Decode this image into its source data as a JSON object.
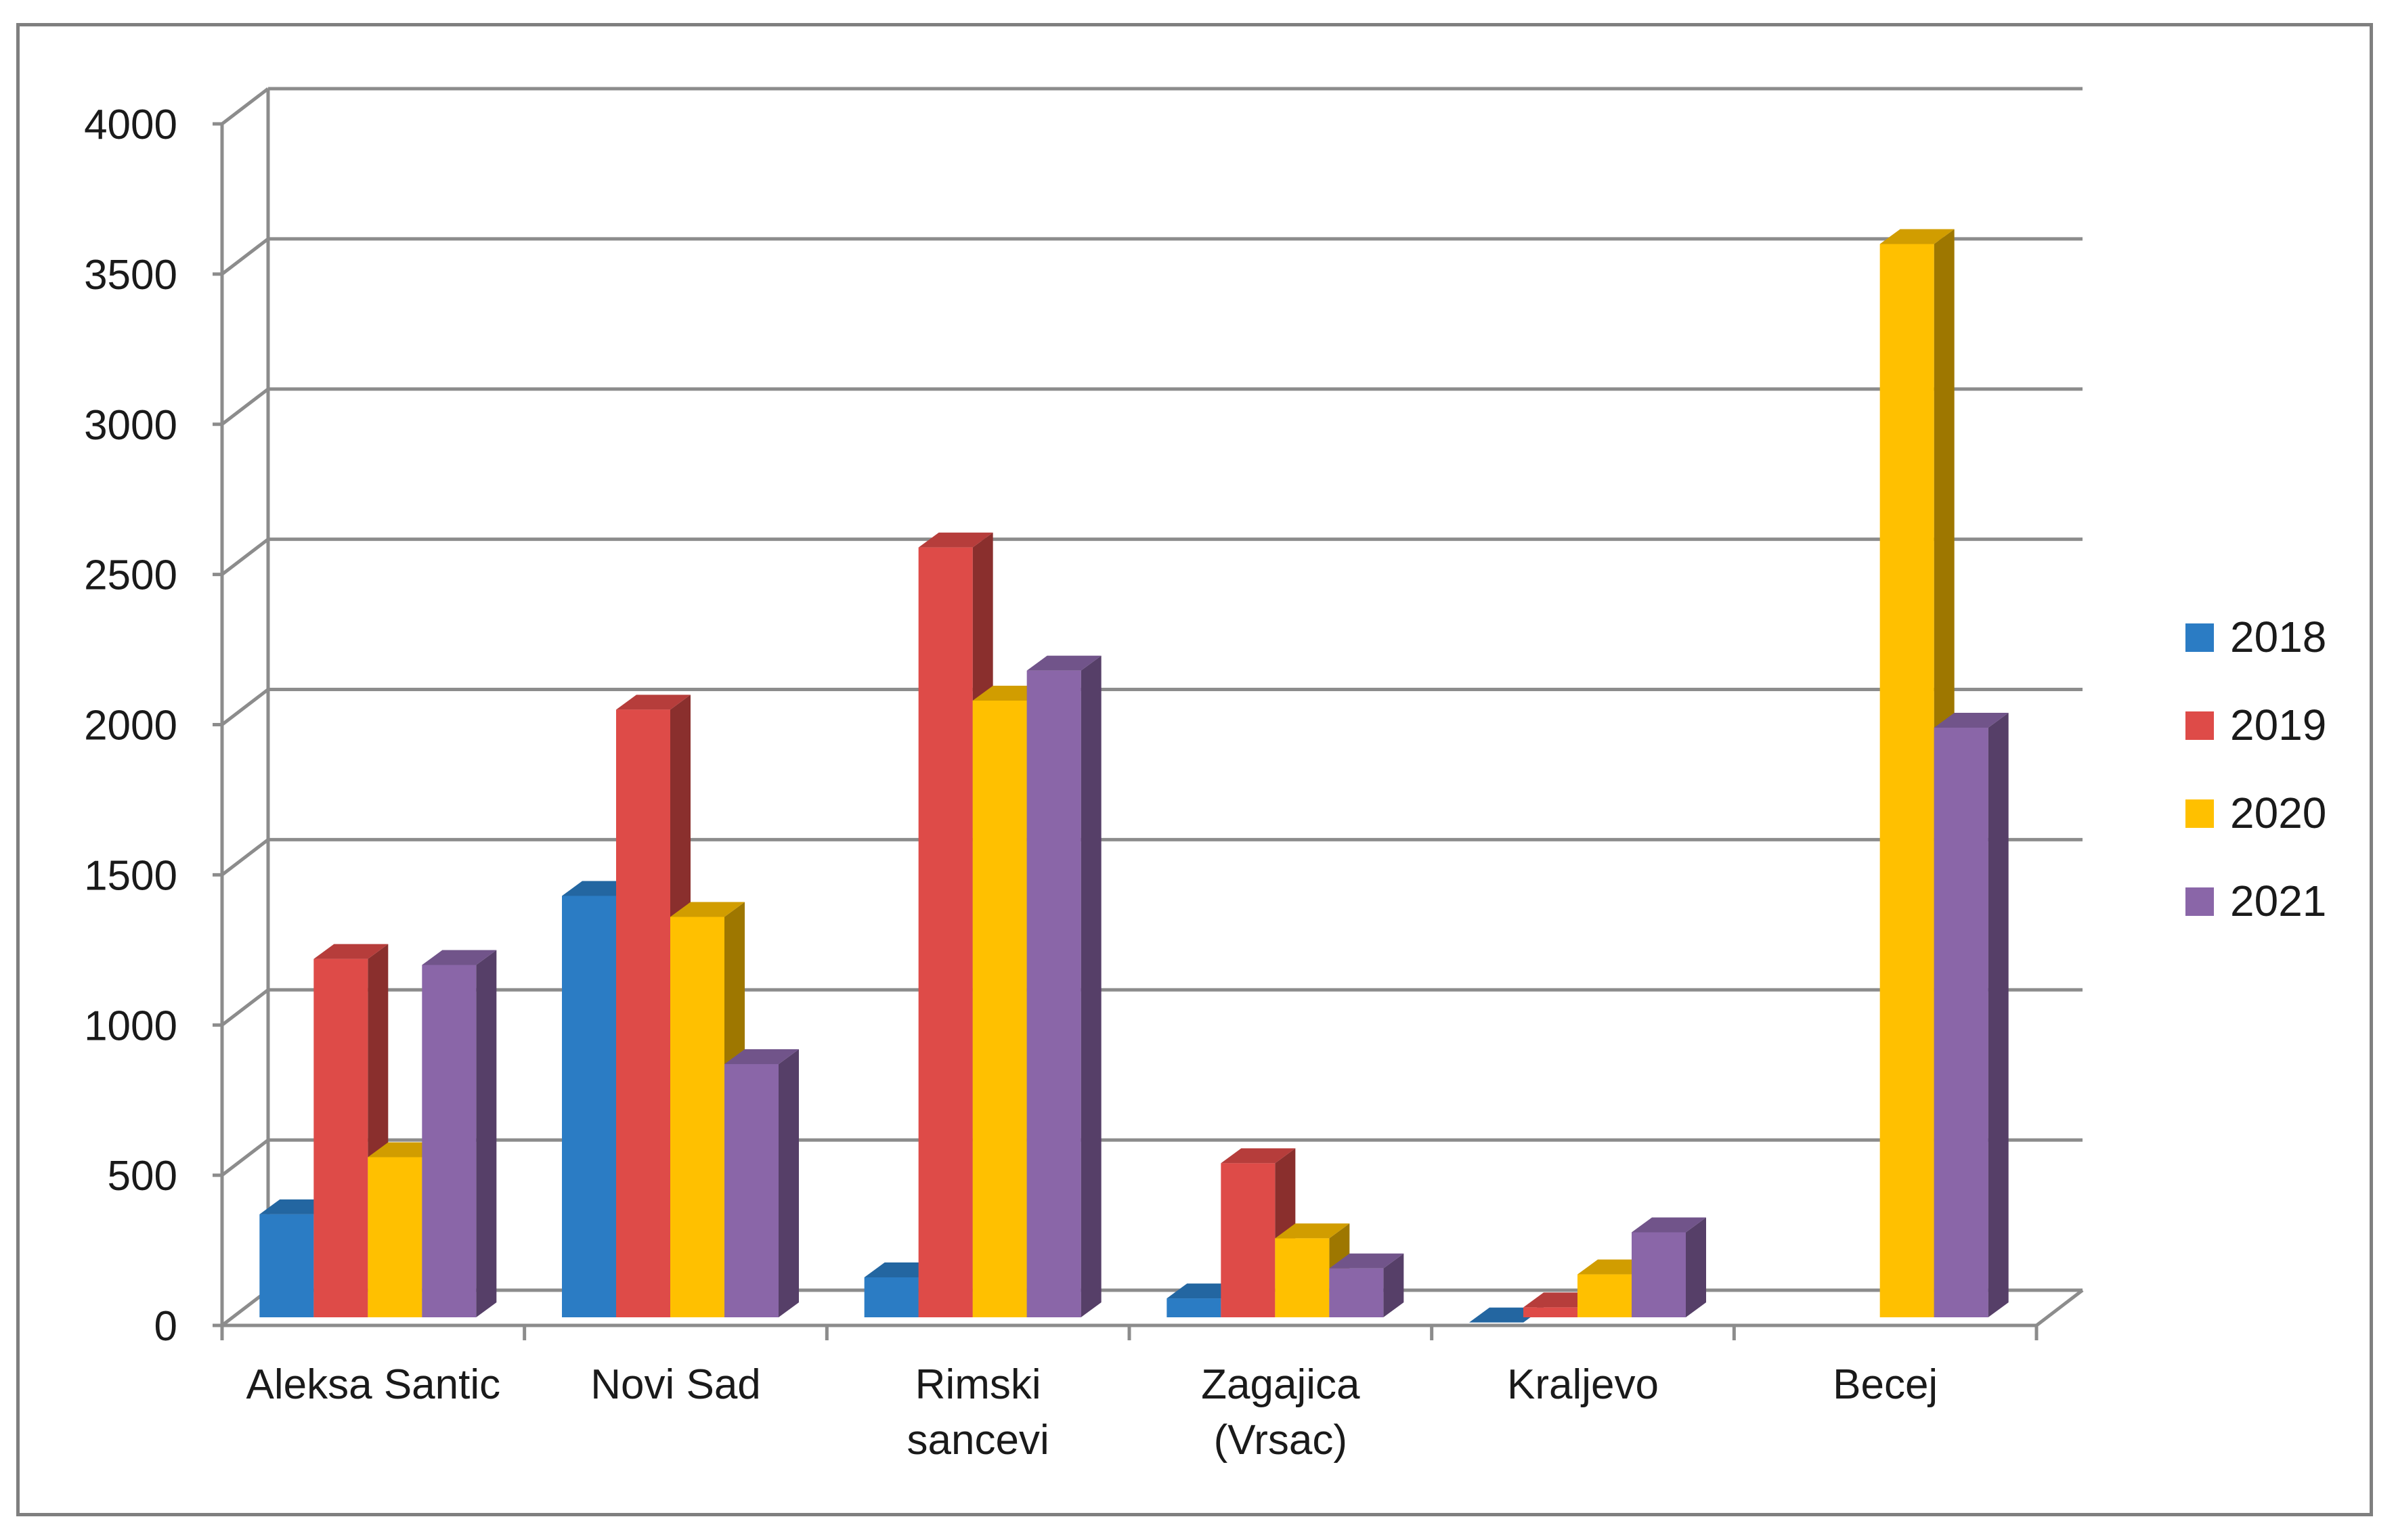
{
  "chart_data": {
    "type": "bar",
    "style": "3d-clustered-column",
    "title": "",
    "xlabel": "",
    "ylabel": "",
    "ylim": [
      0,
      4000
    ],
    "yticks": [
      "0",
      "500",
      "1000",
      "1500",
      "2000",
      "2500",
      "3000",
      "3500",
      "4000"
    ],
    "grid": true,
    "legend_position": "right",
    "categories": [
      [
        "Aleksa Santic"
      ],
      [
        "Novi Sad"
      ],
      [
        "Rimski",
        "sancevi"
      ],
      [
        "Zagajica",
        "(Vrsac)"
      ],
      [
        "Kraljevo"
      ],
      [
        "Becej"
      ]
    ],
    "series": [
      {
        "name": "2018",
        "color": "#2b7cc4",
        "values": [
          370,
          1430,
          160,
          90,
          10,
          0
        ]
      },
      {
        "name": "2019",
        "color": "#de4b48",
        "values": [
          1220,
          2050,
          2590,
          540,
          60,
          0
        ]
      },
      {
        "name": "2020",
        "color": "#ffc000",
        "values": [
          560,
          1360,
          2080,
          290,
          170,
          3600
        ]
      },
      {
        "name": "2021",
        "color": "#8a66a8",
        "values": [
          1200,
          870,
          2180,
          190,
          310,
          1990
        ]
      }
    ]
  }
}
